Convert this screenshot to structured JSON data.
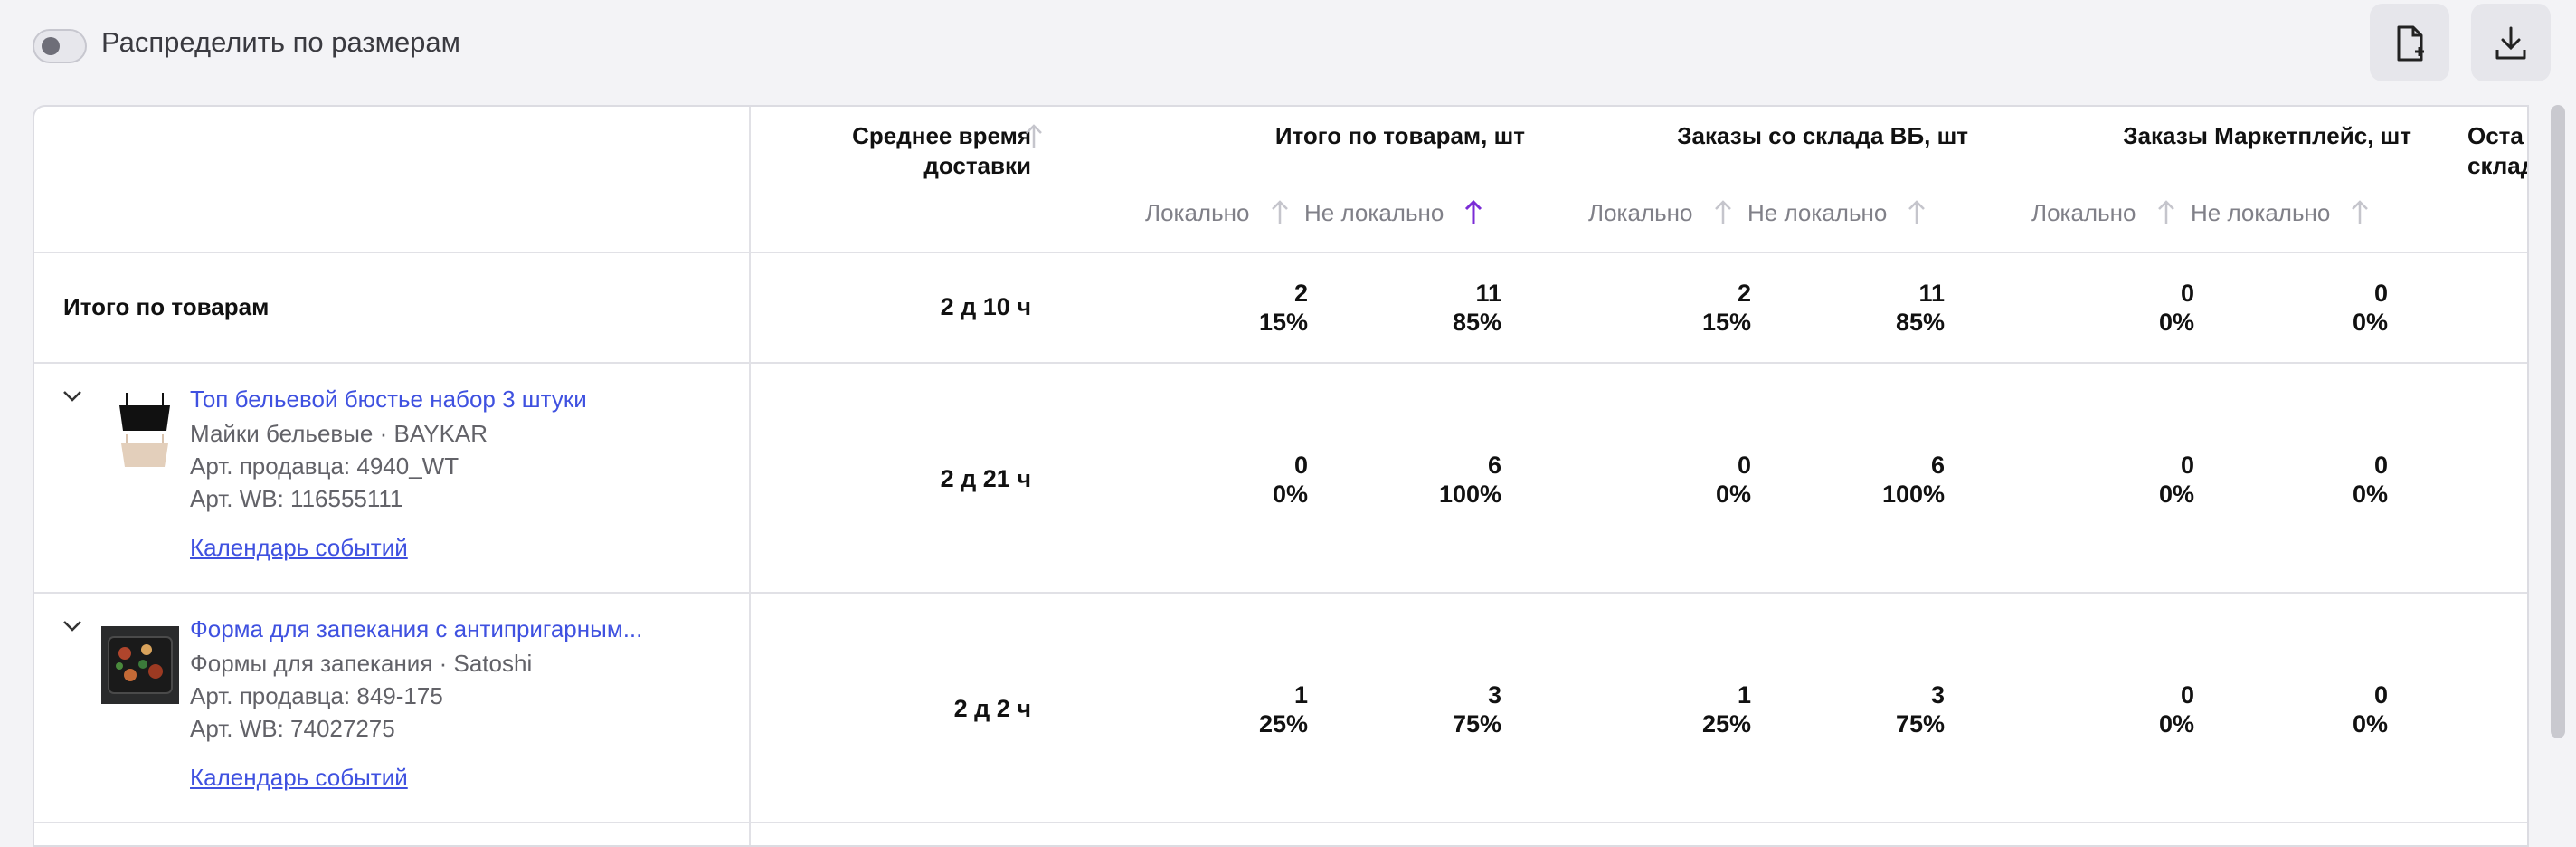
{
  "toolbar": {
    "toggle_label": "Распределить по размерам",
    "add_file_icon": "file-plus-icon",
    "download_icon": "download-icon"
  },
  "columns": {
    "avg_delivery": "Среднее время\nдоставки",
    "total_goods": "Итого по товарам, шт",
    "orders_wb": "Заказы со склада ВБ, шт",
    "orders_mp": "Заказы Маркетплейс, шт",
    "remaining": "Оста\nсклад",
    "local": "Локально",
    "not_local": "Не локально"
  },
  "totals": {
    "label": "Итого по товарам",
    "delivery": "2 д 10 ч",
    "total_local": "2",
    "total_local_pct": "15%",
    "total_nonlocal": "11",
    "total_nonlocal_pct": "85%",
    "wb_local": "2",
    "wb_local_pct": "15%",
    "wb_nonlocal": "11",
    "wb_nonlocal_pct": "85%",
    "mp_local": "0",
    "mp_local_pct": "0%",
    "mp_nonlocal": "0",
    "mp_nonlocal_pct": "0%"
  },
  "products": [
    {
      "name": "Топ бельевой бюстье набор 3 штуки",
      "category": "Майки бельевые · BAYKAR",
      "seller_art": "Арт. продавца: 4940_WT",
      "wb_art": "Арт. WB: 116555111",
      "calendar": "Календарь событий",
      "delivery": "2 д 21 ч",
      "total_local": "0",
      "total_local_pct": "0%",
      "total_nonlocal": "6",
      "total_nonlocal_pct": "100%",
      "wb_local": "0",
      "wb_local_pct": "0%",
      "wb_nonlocal": "6",
      "wb_nonlocal_pct": "100%",
      "mp_local": "0",
      "mp_local_pct": "0%",
      "mp_nonlocal": "0",
      "mp_nonlocal_pct": "0%"
    },
    {
      "name": "Форма для запекания с антипригарным...",
      "category": "Формы для запекания · Satoshi",
      "seller_art": "Арт. продавца: 849-175",
      "wb_art": "Арт. WB: 74027275",
      "calendar": "Календарь событий",
      "delivery": "2 д 2 ч",
      "total_local": "1",
      "total_local_pct": "25%",
      "total_nonlocal": "3",
      "total_nonlocal_pct": "75%",
      "wb_local": "1",
      "wb_local_pct": "25%",
      "wb_nonlocal": "3",
      "wb_nonlocal_pct": "75%",
      "mp_local": "0",
      "mp_local_pct": "0%",
      "mp_nonlocal": "0",
      "mp_nonlocal_pct": "0%"
    }
  ],
  "colors": {
    "link": "#3f51e0",
    "active_sort": "#7b2cd6",
    "inactive_sort": "#c5c5cc"
  }
}
